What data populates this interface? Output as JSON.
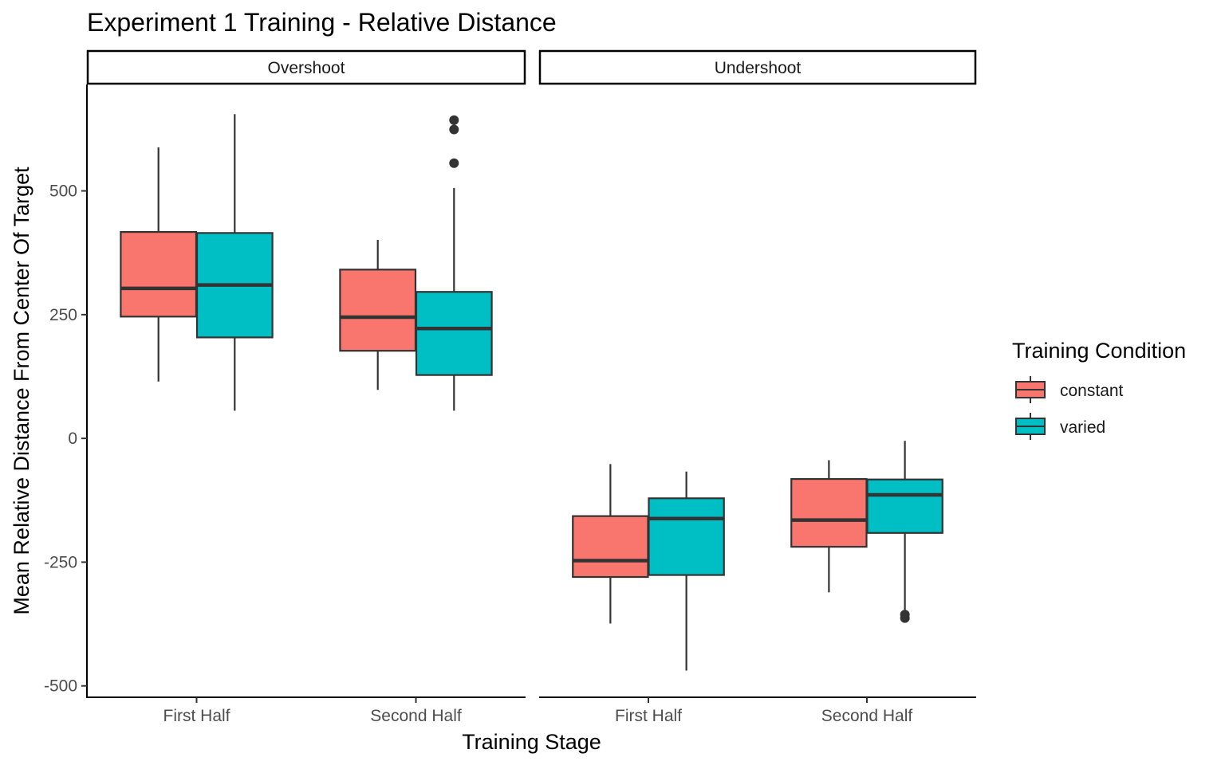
{
  "chart_data": {
    "type": "boxplot",
    "title": "Experiment 1 Training - Relative Distance",
    "xlabel": "Training Stage",
    "ylabel": "Mean Relative Distance From Center Of Target",
    "ylim": [
      -523,
      715
    ],
    "yticks": [
      -500,
      -250,
      0,
      250,
      500
    ],
    "categories": [
      "First Half",
      "Second Half"
    ],
    "grid": false,
    "facets": [
      {
        "label": "Overshoot",
        "boxes": [
          {
            "category": "First Half",
            "group": "constant",
            "min": 115,
            "q1": 246,
            "median": 303,
            "q3": 417,
            "max": 588,
            "outliers": []
          },
          {
            "category": "First Half",
            "group": "varied",
            "min": 56,
            "q1": 204,
            "median": 310,
            "q3": 415,
            "max": 655,
            "outliers": []
          },
          {
            "category": "Second Half",
            "group": "constant",
            "min": 98,
            "q1": 177,
            "median": 245,
            "q3": 341,
            "max": 401,
            "outliers": []
          },
          {
            "category": "Second Half",
            "group": "varied",
            "min": 56,
            "q1": 128,
            "median": 222,
            "q3": 296,
            "max": 506,
            "outliers": [
              556,
              624,
              643
            ]
          }
        ]
      },
      {
        "label": "Undershoot",
        "boxes": [
          {
            "category": "First Half",
            "group": "constant",
            "min": -374,
            "q1": -280,
            "median": -247,
            "q3": -157,
            "max": -52,
            "outliers": []
          },
          {
            "category": "First Half",
            "group": "varied",
            "min": -469,
            "q1": -276,
            "median": -162,
            "q3": -121,
            "max": -67,
            "outliers": []
          },
          {
            "category": "Second Half",
            "group": "constant",
            "min": -311,
            "q1": -219,
            "median": -165,
            "q3": -82,
            "max": -44,
            "outliers": []
          },
          {
            "category": "Second Half",
            "group": "varied",
            "min": -358,
            "q1": -191,
            "median": -114,
            "q3": -83,
            "max": -5,
            "outliers": [
              -356,
              -363
            ]
          }
        ]
      }
    ],
    "legend": {
      "title": "Training Condition",
      "position": "right",
      "items": [
        {
          "name": "constant",
          "color": "#F8766D"
        },
        {
          "name": "varied",
          "color": "#00BFC4"
        }
      ]
    }
  }
}
